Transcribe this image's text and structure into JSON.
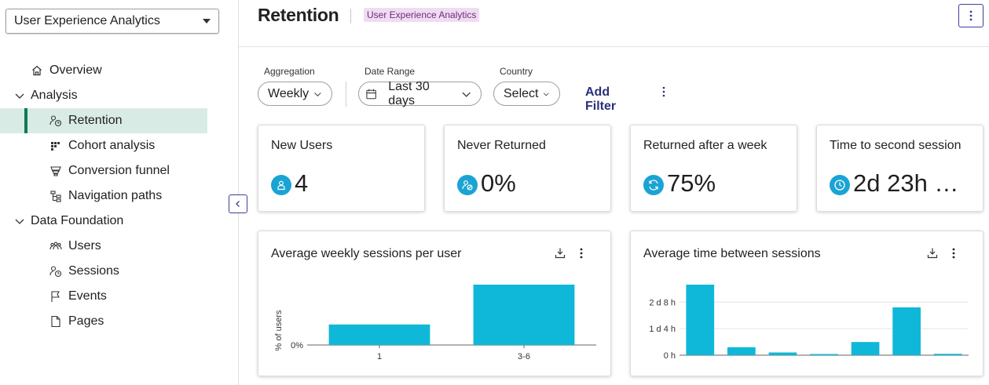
{
  "sidebar": {
    "app_select": "User Experience Analytics",
    "items": [
      {
        "label": "Overview"
      },
      {
        "label": "Analysis"
      },
      {
        "label": "Retention"
      },
      {
        "label": "Cohort analysis"
      },
      {
        "label": "Conversion funnel"
      },
      {
        "label": "Navigation paths"
      },
      {
        "label": "Data Foundation"
      },
      {
        "label": "Users"
      },
      {
        "label": "Sessions"
      },
      {
        "label": "Events"
      },
      {
        "label": "Pages"
      }
    ]
  },
  "header": {
    "title": "Retention",
    "badge": "User Experience Analytics"
  },
  "filters": {
    "aggregation": {
      "label": "Aggregation",
      "value": "Weekly"
    },
    "date_range": {
      "label": "Date Range",
      "value": "Last 30 days"
    },
    "country": {
      "label": "Country",
      "value": "Select"
    },
    "add_filter": "Add Filter"
  },
  "kpis": [
    {
      "label": "New Users",
      "value": "4",
      "icon": "user-icon"
    },
    {
      "label": "Never Returned",
      "value": "0%",
      "icon": "user-cancel-icon"
    },
    {
      "label": "Returned after a week",
      "value": "75%",
      "icon": "refresh-icon"
    },
    {
      "label": "Time to second session",
      "value": "2d 23h …",
      "icon": "clock-icon"
    }
  ],
  "colors": {
    "accent": "#0fb8d8",
    "primary": "#3b3fa0",
    "active_bg": "#d9ebe5",
    "active_bar": "#0e7a5a"
  },
  "chart_data": [
    {
      "type": "bar",
      "title": "Average weekly sessions per user",
      "ylabel": "% of users",
      "xlabel": "",
      "categories": [
        "1",
        "3-6"
      ],
      "values": [
        34,
        100
      ],
      "y_ticks": [
        "0%"
      ],
      "ylim": [
        0,
        100
      ],
      "grid": false
    },
    {
      "type": "bar",
      "title": "Average time between sessions",
      "xlabel": "",
      "ylabel": "",
      "categories": [
        "",
        "",
        "",
        "",
        "",
        "",
        ""
      ],
      "values": [
        3.1,
        0.35,
        0.12,
        0.05,
        0.58,
        2.1,
        0.06
      ],
      "y_ticks": [
        "0 h",
        "1 d 4 h",
        "2 d 8 h"
      ],
      "y_tick_values": [
        0,
        1.1667,
        2.3333
      ],
      "ylim": [
        0,
        3.1
      ],
      "grid": true
    }
  ]
}
